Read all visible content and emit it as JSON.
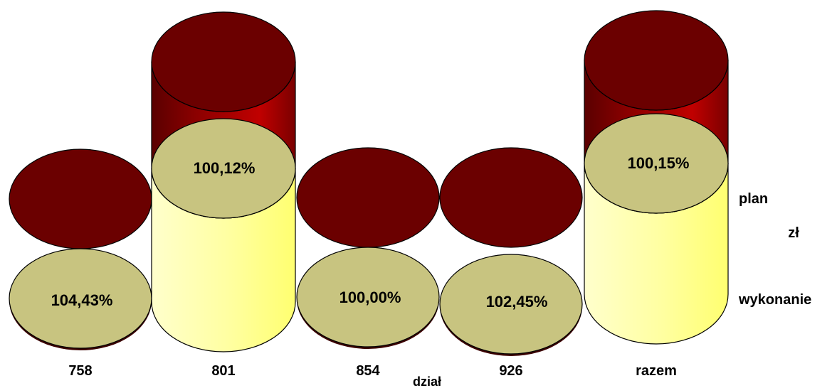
{
  "chart_data": {
    "type": "bar",
    "style": "3d-cylinder",
    "categories": [
      "758",
      "801",
      "854",
      "926",
      "razem"
    ],
    "data_labels": [
      "104,43%",
      "100,12%",
      "100,00%",
      "102,45%",
      "100,15%"
    ],
    "xlabel": "dział",
    "ylabel": "zł",
    "series": [
      {
        "name": "wykonanie",
        "color": "#ffff99",
        "top_color": "#c8c480"
      },
      {
        "name": "plan",
        "color": "#7a0000",
        "top_color": "#6b0000"
      }
    ],
    "legend": {
      "placement": "right",
      "entries": [
        "plan",
        "wykonanie"
      ]
    }
  }
}
